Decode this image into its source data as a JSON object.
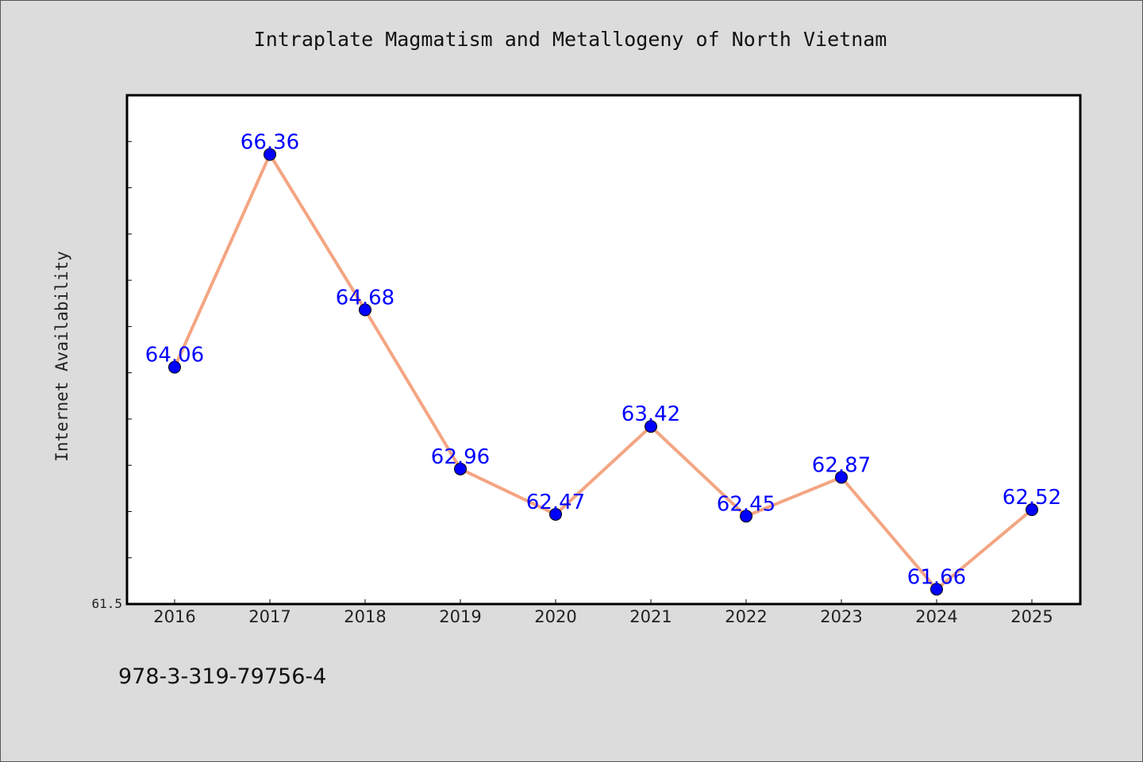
{
  "figure": {
    "title": "Intraplate Magmatism and Metallogeny of North Vietnam",
    "footer_text": "978-3-319-79756-4"
  },
  "chart_data": {
    "type": "line",
    "title": "Intraplate Magmatism and Metallogeny of North Vietnam",
    "xlabel": "",
    "ylabel": "Internet Availability",
    "categories": [
      "2016",
      "2017",
      "2018",
      "2019",
      "2020",
      "2021",
      "2022",
      "2023",
      "2024",
      "2025"
    ],
    "series": [
      {
        "values": [
          64.06,
          66.36,
          64.68,
          62.96,
          62.47,
          63.42,
          62.45,
          62.87,
          61.66,
          62.52
        ],
        "data_labels": [
          "64.06",
          "66.36",
          "64.68",
          "62.96",
          "62.47",
          "63.42",
          "62.45",
          "62.87",
          "61.66",
          "62.52"
        ]
      }
    ],
    "ylim": [
      61.5,
      67.0
    ],
    "y_tick_labels": [
      "61.5"
    ],
    "y_minor_tick_step": 0.5,
    "grid": false,
    "legend": "none",
    "colors": {
      "line": "#f4a582",
      "marker": "#0000ff",
      "data_label": "#0000ff",
      "plot_background": "#ffffff",
      "figure_background": "#dcdcdc"
    }
  }
}
